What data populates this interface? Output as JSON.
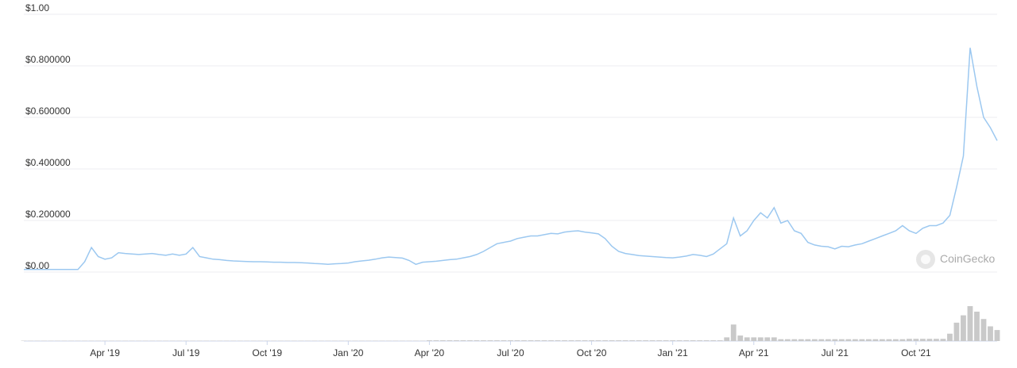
{
  "chart_data": {
    "type": "line",
    "categories": [
      null,
      null,
      null,
      null,
      null,
      null,
      null,
      null,
      null,
      null,
      null,
      null,
      "Apr '19",
      null,
      null,
      null,
      null,
      null,
      null,
      null,
      null,
      null,
      null,
      null,
      "Jul '19",
      null,
      null,
      null,
      null,
      null,
      null,
      null,
      null,
      null,
      null,
      null,
      "Oct '19",
      null,
      null,
      null,
      null,
      null,
      null,
      null,
      null,
      null,
      null,
      null,
      "Jan '20",
      null,
      null,
      null,
      null,
      null,
      null,
      null,
      null,
      null,
      null,
      null,
      "Apr '20",
      null,
      null,
      null,
      null,
      null,
      null,
      null,
      null,
      null,
      null,
      null,
      "Jul '20",
      null,
      null,
      null,
      null,
      null,
      null,
      null,
      null,
      null,
      null,
      null,
      "Oct '20",
      null,
      null,
      null,
      null,
      null,
      null,
      null,
      null,
      null,
      null,
      null,
      "Jan '21",
      null,
      null,
      null,
      null,
      null,
      null,
      null,
      null,
      null,
      null,
      null,
      "Apr '21",
      null,
      null,
      null,
      null,
      null,
      null,
      null,
      null,
      null,
      null,
      null,
      "Jul '21",
      null,
      null,
      null,
      null,
      null,
      null,
      null,
      null,
      null,
      null,
      null,
      "Oct '21",
      null,
      null,
      null,
      null,
      null,
      null,
      null,
      null,
      null,
      null,
      null,
      null
    ],
    "series": [
      {
        "color": "#9cc8f0",
        "values": [
          0.01,
          0.01,
          0.01,
          0.01,
          0.01,
          0.01,
          0.01,
          0.01,
          0.01,
          0.04,
          0.095,
          0.06,
          0.05,
          0.055,
          0.075,
          0.072,
          0.07,
          0.068,
          0.07,
          0.072,
          0.068,
          0.065,
          0.07,
          0.065,
          0.07,
          0.095,
          0.06,
          0.055,
          0.05,
          0.048,
          0.045,
          0.043,
          0.042,
          0.041,
          0.04,
          0.04,
          0.039,
          0.038,
          0.038,
          0.037,
          0.037,
          0.036,
          0.035,
          0.033,
          0.032,
          0.03,
          0.032,
          0.033,
          0.035,
          0.04,
          0.043,
          0.046,
          0.05,
          0.055,
          0.058,
          0.056,
          0.054,
          0.045,
          0.03,
          0.038,
          0.04,
          0.042,
          0.045,
          0.048,
          0.05,
          0.055,
          0.06,
          0.068,
          0.08,
          0.095,
          0.11,
          0.115,
          0.12,
          0.13,
          0.135,
          0.14,
          0.14,
          0.145,
          0.15,
          0.148,
          0.155,
          0.158,
          0.16,
          0.155,
          0.152,
          0.148,
          0.13,
          0.1,
          0.08,
          0.072,
          0.068,
          0.064,
          0.062,
          0.06,
          0.058,
          0.056,
          0.055,
          0.058,
          0.062,
          0.068,
          0.065,
          0.06,
          0.07,
          0.09,
          0.11,
          0.21,
          0.14,
          0.16,
          0.2,
          0.23,
          0.21,
          0.25,
          0.19,
          0.2,
          0.16,
          0.15,
          0.115,
          0.105,
          0.1,
          0.098,
          0.09,
          0.1,
          0.098,
          0.105,
          0.11,
          0.12,
          0.13,
          0.14,
          0.15,
          0.16,
          0.18,
          0.16,
          0.15,
          0.17,
          0.18,
          0.18,
          0.19,
          0.22,
          0.33,
          0.45,
          0.87,
          0.72,
          0.6,
          0.56,
          0.51
        ]
      }
    ],
    "volume": {
      "color": "#c9c9c9",
      "values": [
        0.01,
        0.01,
        0.01,
        0.01,
        0.01,
        0.01,
        0.01,
        0.01,
        0.01,
        0.01,
        0.01,
        0.01,
        0.01,
        0.01,
        0.01,
        0.01,
        0.01,
        0.01,
        0.01,
        0.01,
        0.01,
        0.01,
        0.01,
        0.01,
        0.01,
        0.01,
        0.01,
        0.01,
        0.01,
        0.01,
        0.01,
        0.01,
        0.01,
        0.01,
        0.01,
        0.01,
        0.01,
        0.01,
        0.01,
        0.01,
        0.01,
        0.01,
        0.01,
        0.01,
        0.01,
        0.01,
        0.01,
        0.01,
        0.01,
        0.01,
        0.01,
        0.01,
        0.01,
        0.01,
        0.01,
        0.01,
        0.01,
        0.01,
        0.01,
        0.01,
        0.02,
        0.02,
        0.02,
        0.02,
        0.02,
        0.02,
        0.02,
        0.02,
        0.02,
        0.02,
        0.02,
        0.02,
        0.02,
        0.02,
        0.02,
        0.02,
        0.02,
        0.02,
        0.02,
        0.02,
        0.02,
        0.02,
        0.02,
        0.02,
        0.02,
        0.02,
        0.02,
        0.02,
        0.02,
        0.02,
        0.02,
        0.02,
        0.02,
        0.02,
        0.02,
        0.02,
        0.02,
        0.02,
        0.02,
        0.02,
        0.02,
        0.02,
        0.02,
        0.02,
        0.1,
        0.45,
        0.15,
        0.1,
        0.1,
        0.1,
        0.1,
        0.1,
        0.05,
        0.05,
        0.05,
        0.05,
        0.05,
        0.05,
        0.05,
        0.05,
        0.05,
        0.05,
        0.05,
        0.05,
        0.05,
        0.05,
        0.05,
        0.05,
        0.05,
        0.05,
        0.05,
        0.06,
        0.06,
        0.06,
        0.06,
        0.06,
        0.06,
        0.2,
        0.5,
        0.7,
        0.95,
        0.8,
        0.6,
        0.4,
        0.3
      ]
    },
    "ylim": [
      0,
      1
    ],
    "yticks": [
      {
        "value": 0,
        "label": "$0.00"
      },
      {
        "value": 0.2,
        "label": "$0.200000"
      },
      {
        "value": 0.4,
        "label": "$0.400000"
      },
      {
        "value": 0.6,
        "label": "$0.600000"
      },
      {
        "value": 0.8,
        "label": "$0.800000"
      },
      {
        "value": 1,
        "label": "$1.00"
      }
    ],
    "grid": true,
    "watermark": "CoinGecko"
  }
}
